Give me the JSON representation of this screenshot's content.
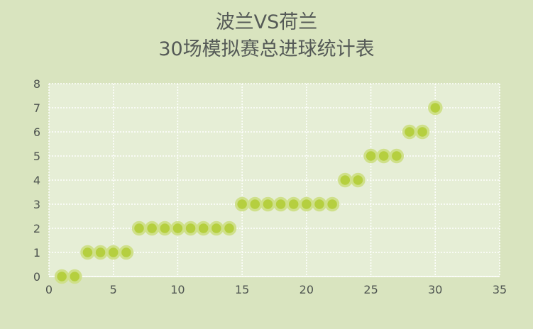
{
  "chart_data": {
    "type": "scatter",
    "title_line1": "波兰VS荷兰",
    "title_line2": "30场模拟赛总进球统计表",
    "xlabel": "",
    "ylabel": "",
    "xlim": [
      0,
      35
    ],
    "ylim": [
      0,
      8
    ],
    "x_ticks": [
      "0",
      "5",
      "10",
      "15",
      "20",
      "25",
      "30",
      "35"
    ],
    "y_ticks": [
      "0",
      "1",
      "2",
      "3",
      "4",
      "5",
      "6",
      "7",
      "8"
    ],
    "grid": true,
    "colors": {
      "background": "#d9e4bf",
      "plot_area": "#e6eed6",
      "marker_fill": "#b5cf3f",
      "marker_edge": "#cfe08a",
      "grid": "#ffffff"
    },
    "points": [
      {
        "x": 1,
        "y": 0
      },
      {
        "x": 2,
        "y": 0
      },
      {
        "x": 3,
        "y": 1
      },
      {
        "x": 4,
        "y": 1
      },
      {
        "x": 5,
        "y": 1
      },
      {
        "x": 6,
        "y": 1
      },
      {
        "x": 7,
        "y": 2
      },
      {
        "x": 8,
        "y": 2
      },
      {
        "x": 9,
        "y": 2
      },
      {
        "x": 10,
        "y": 2
      },
      {
        "x": 11,
        "y": 2
      },
      {
        "x": 12,
        "y": 2
      },
      {
        "x": 13,
        "y": 2
      },
      {
        "x": 14,
        "y": 2
      },
      {
        "x": 15,
        "y": 3
      },
      {
        "x": 16,
        "y": 3
      },
      {
        "x": 17,
        "y": 3
      },
      {
        "x": 18,
        "y": 3
      },
      {
        "x": 19,
        "y": 3
      },
      {
        "x": 20,
        "y": 3
      },
      {
        "x": 21,
        "y": 3
      },
      {
        "x": 22,
        "y": 3
      },
      {
        "x": 23,
        "y": 4
      },
      {
        "x": 24,
        "y": 4
      },
      {
        "x": 25,
        "y": 5
      },
      {
        "x": 26,
        "y": 5
      },
      {
        "x": 27,
        "y": 5
      },
      {
        "x": 28,
        "y": 6
      },
      {
        "x": 29,
        "y": 6
      },
      {
        "x": 30,
        "y": 7
      }
    ]
  }
}
